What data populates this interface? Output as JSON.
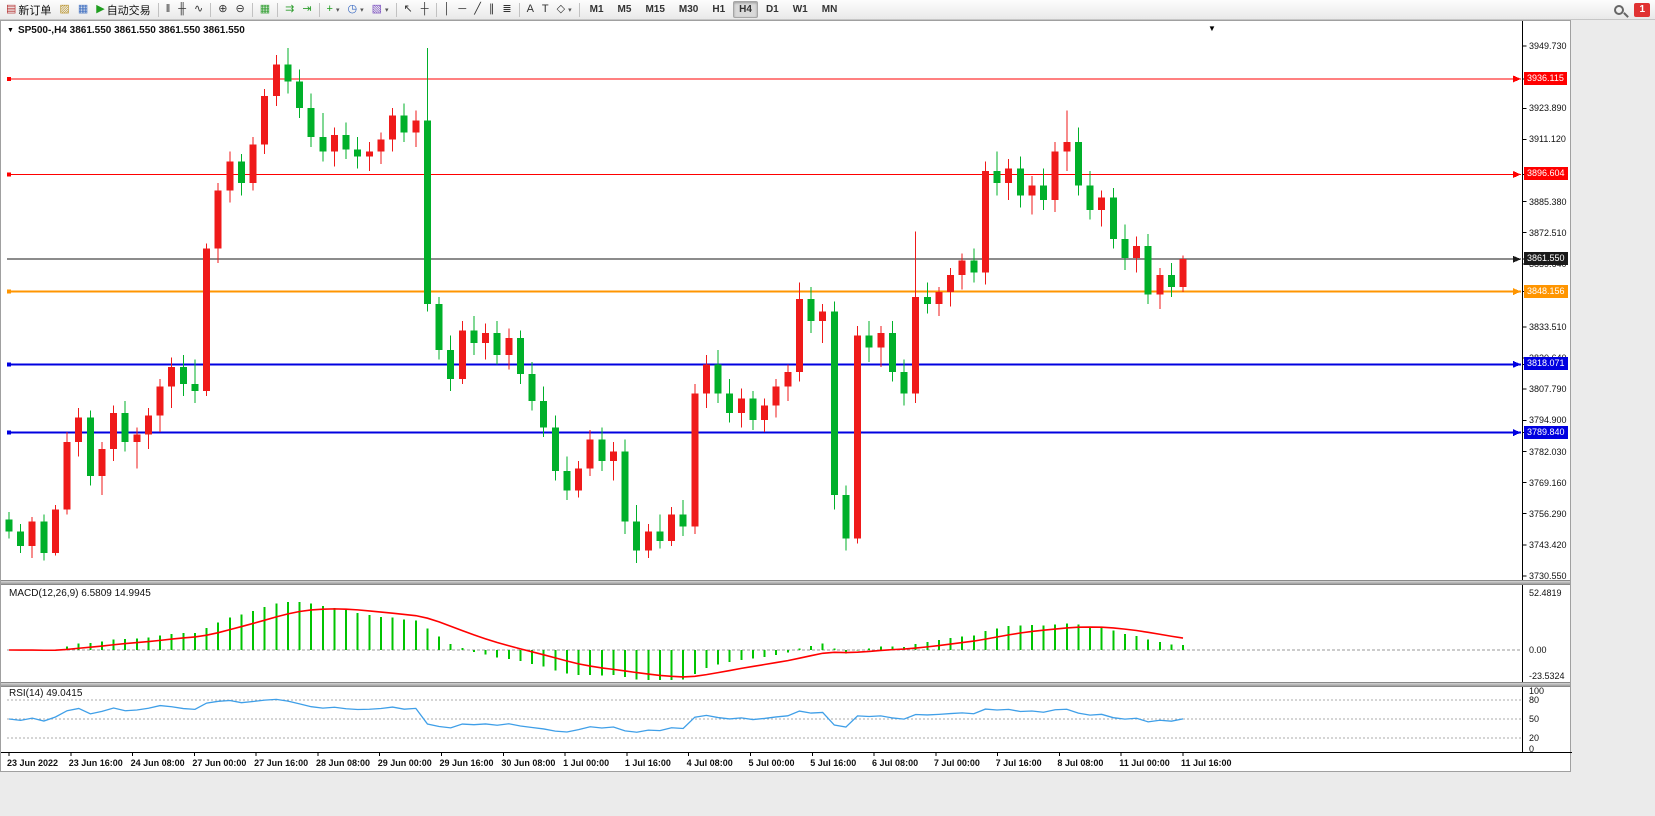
{
  "toolbar": {
    "caret_glyph": "▾",
    "notification_count": "1",
    "items": [
      {
        "name": "new-order-button",
        "glyph": "▤",
        "glyph_color": "#b43030",
        "label": "新订单"
      },
      {
        "name": "chart-profiles-icon-button",
        "glyph": "▨",
        "glyph_color": "#b8922a"
      },
      {
        "name": "market-watch-icon-button",
        "glyph": "▦",
        "glyph_color": "#3a6bbf"
      },
      {
        "name": "auto-trading-button",
        "glyph": "▶",
        "glyph_color": "#1f9e1f",
        "label": "自动交易"
      },
      {
        "sep": true
      },
      {
        "name": "bar-chart-button",
        "glyph": "‖",
        "glyph_color": "#333333"
      },
      {
        "name": "candlestick-chart-button",
        "glyph": "╫",
        "glyph_color": "#333333"
      },
      {
        "name": "line-chart-button",
        "glyph": "∿",
        "glyph_color": "#333333"
      },
      {
        "sep": true
      },
      {
        "name": "zoom-in-button",
        "glyph": "⊕",
        "glyph_color": "#333333"
      },
      {
        "name": "zoom-out-button",
        "glyph": "⊖",
        "glyph_color": "#333333"
      },
      {
        "sep": true
      },
      {
        "name": "tile-windows-button",
        "glyph": "▦",
        "glyph_color": "#2f9e2f"
      },
      {
        "sep": true
      },
      {
        "name": "auto-scroll-button",
        "glyph": "⇉",
        "glyph_color": "#2f9e2f"
      },
      {
        "name": "chart-shift-button",
        "glyph": "⇥",
        "glyph_color": "#2f9e2f"
      },
      {
        "sep": true
      },
      {
        "name": "indicators-button",
        "glyph": "+",
        "glyph_color": "#1f9e1f",
        "dropdown": true
      },
      {
        "name": "periods-button",
        "glyph": "◷",
        "glyph_color": "#2a5fbf",
        "dropdown": true
      },
      {
        "name": "templates-button",
        "glyph": "▧",
        "glyph_color": "#7a4fbf",
        "dropdown": true
      },
      {
        "sep": true
      },
      {
        "name": "cursor-button",
        "glyph": "↖",
        "glyph_color": "#333333"
      },
      {
        "name": "crosshair-button",
        "glyph": "┼",
        "glyph_color": "#333333"
      },
      {
        "sep": true
      },
      {
        "name": "vertical-line-button",
        "glyph": "│",
        "glyph_color": "#333333"
      },
      {
        "name": "horizontal-line-button",
        "glyph": "─",
        "glyph_color": "#333333"
      },
      {
        "name": "trendline-button",
        "glyph": "╱",
        "glyph_color": "#333333"
      },
      {
        "name": "equidistant-channel-button",
        "glyph": "∥",
        "glyph_color": "#333333"
      },
      {
        "name": "fibonacci-button",
        "glyph": "≣",
        "glyph_color": "#333333"
      },
      {
        "sep": true
      },
      {
        "name": "text-button",
        "glyph": "A",
        "glyph_color": "#333333"
      },
      {
        "name": "text-label-button",
        "glyph": "T",
        "glyph_color": "#333333"
      },
      {
        "name": "arrows-button",
        "glyph": "◇",
        "glyph_color": "#333333",
        "dropdown": true
      },
      {
        "sep": true
      }
    ],
    "timeframes": [
      "M1",
      "M5",
      "M15",
      "M30",
      "H1",
      "H4",
      "D1",
      "W1",
      "MN"
    ],
    "active_timeframe": "H4"
  },
  "chart": {
    "title": "SP500-,H4  3861.550 3861.550 3861.550 3861.550",
    "dropdown_glyph": "▼",
    "scroll_marker_glyph": "▼"
  },
  "chart_data": {
    "type": "candlestick",
    "symbol": "SP500-",
    "timeframe": "H4",
    "ohlc_display": [
      "3861.550",
      "3861.550",
      "3861.550",
      "3861.550"
    ],
    "colors": {
      "bull": "#ef1a1a",
      "bear": "#00b02a",
      "macd_histogram": "#00c400",
      "macd_signal": "#ff0000",
      "rsi_line": "#3f9fe8",
      "current_price_line": "#1a1a1a"
    },
    "y_range": [
      3729.3,
      3951.8
    ],
    "candles": [
      [
        3754,
        3757,
        3746,
        3749
      ],
      [
        3749,
        3752,
        3740,
        3743
      ],
      [
        3743,
        3755,
        3738,
        3753
      ],
      [
        3753,
        3756,
        3737,
        3740
      ],
      [
        3740,
        3760,
        3739,
        3758
      ],
      [
        3758,
        3790,
        3756,
        3786
      ],
      [
        3786,
        3800,
        3780,
        3796
      ],
      [
        3796,
        3799,
        3768,
        3772
      ],
      [
        3772,
        3786,
        3764,
        3783
      ],
      [
        3783,
        3801,
        3778,
        3798
      ],
      [
        3798,
        3803,
        3782,
        3786
      ],
      [
        3786,
        3792,
        3775,
        3789
      ],
      [
        3789,
        3800,
        3783,
        3797
      ],
      [
        3797,
        3812,
        3790,
        3809
      ],
      [
        3809,
        3821,
        3800,
        3817
      ],
      [
        3817,
        3822,
        3805,
        3810
      ],
      [
        3810,
        3820,
        3802,
        3807
      ],
      [
        3807,
        3868,
        3805,
        3866
      ],
      [
        3866,
        3893,
        3860,
        3890
      ],
      [
        3890,
        3906,
        3885,
        3902
      ],
      [
        3902,
        3905,
        3888,
        3893
      ],
      [
        3893,
        3912,
        3890,
        3909
      ],
      [
        3909,
        3932,
        3905,
        3929
      ],
      [
        3929,
        3946,
        3925,
        3942
      ],
      [
        3942,
        3949,
        3930,
        3935
      ],
      [
        3935,
        3940,
        3920,
        3924
      ],
      [
        3924,
        3930,
        3908,
        3912
      ],
      [
        3912,
        3922,
        3902,
        3906
      ],
      [
        3906,
        3916,
        3900,
        3913
      ],
      [
        3913,
        3918,
        3903,
        3907
      ],
      [
        3907,
        3912,
        3899,
        3904
      ],
      [
        3904,
        3910,
        3898,
        3906
      ],
      [
        3906,
        3914,
        3901,
        3911
      ],
      [
        3911,
        3924,
        3906,
        3921
      ],
      [
        3921,
        3926,
        3910,
        3914
      ],
      [
        3914,
        3923,
        3908,
        3919
      ],
      [
        3919,
        3949,
        3840,
        3843
      ],
      [
        3843,
        3846,
        3820,
        3824
      ],
      [
        3824,
        3830,
        3807,
        3812
      ],
      [
        3812,
        3836,
        3810,
        3832
      ],
      [
        3832,
        3838,
        3822,
        3827
      ],
      [
        3827,
        3835,
        3820,
        3831
      ],
      [
        3831,
        3836,
        3818,
        3822
      ],
      [
        3822,
        3833,
        3816,
        3829
      ],
      [
        3829,
        3832,
        3810,
        3814
      ],
      [
        3814,
        3819,
        3799,
        3803
      ],
      [
        3803,
        3809,
        3788,
        3792
      ],
      [
        3792,
        3797,
        3770,
        3774
      ],
      [
        3774,
        3780,
        3762,
        3766
      ],
      [
        3766,
        3778,
        3763,
        3775
      ],
      [
        3775,
        3791,
        3772,
        3787
      ],
      [
        3787,
        3792,
        3774,
        3778
      ],
      [
        3778,
        3786,
        3770,
        3782
      ],
      [
        3782,
        3787,
        3748,
        3753
      ],
      [
        3753,
        3760,
        3736,
        3741
      ],
      [
        3741,
        3752,
        3738,
        3749
      ],
      [
        3749,
        3756,
        3742,
        3745
      ],
      [
        3745,
        3759,
        3743,
        3756
      ],
      [
        3756,
        3762,
        3747,
        3751
      ],
      [
        3751,
        3810,
        3748,
        3806
      ],
      [
        3806,
        3822,
        3800,
        3818
      ],
      [
        3818,
        3824,
        3802,
        3806
      ],
      [
        3806,
        3812,
        3794,
        3798
      ],
      [
        3798,
        3808,
        3792,
        3804
      ],
      [
        3804,
        3807,
        3791,
        3795
      ],
      [
        3795,
        3804,
        3790,
        3801
      ],
      [
        3801,
        3812,
        3796,
        3809
      ],
      [
        3809,
        3818,
        3803,
        3815
      ],
      [
        3815,
        3852,
        3811,
        3845
      ],
      [
        3845,
        3850,
        3831,
        3836
      ],
      [
        3836,
        3843,
        3827,
        3840
      ],
      [
        3840,
        3844,
        3758,
        3764
      ],
      [
        3764,
        3768,
        3741,
        3746
      ],
      [
        3746,
        3834,
        3744,
        3830
      ],
      [
        3830,
        3836,
        3819,
        3825
      ],
      [
        3825,
        3834,
        3817,
        3831
      ],
      [
        3831,
        3836,
        3811,
        3815
      ],
      [
        3815,
        3820,
        3801,
        3806
      ],
      [
        3806,
        3873,
        3802,
        3846
      ],
      [
        3846,
        3852,
        3839,
        3843
      ],
      [
        3843,
        3850,
        3838,
        3848
      ],
      [
        3848,
        3858,
        3842,
        3855
      ],
      [
        3855,
        3864,
        3849,
        3861
      ],
      [
        3861,
        3866,
        3852,
        3856
      ],
      [
        3856,
        3902,
        3851,
        3898
      ],
      [
        3898,
        3906,
        3888,
        3893
      ],
      [
        3893,
        3903,
        3886,
        3899
      ],
      [
        3899,
        3904,
        3883,
        3888
      ],
      [
        3888,
        3896,
        3880,
        3892
      ],
      [
        3892,
        3899,
        3882,
        3886
      ],
      [
        3886,
        3910,
        3881,
        3906
      ],
      [
        3906,
        3923,
        3898,
        3910
      ],
      [
        3910,
        3916,
        3888,
        3892
      ],
      [
        3892,
        3898,
        3878,
        3882
      ],
      [
        3882,
        3890,
        3875,
        3887
      ],
      [
        3887,
        3891,
        3866,
        3870
      ],
      [
        3870,
        3876,
        3857,
        3862
      ],
      [
        3862,
        3871,
        3856,
        3867
      ],
      [
        3867,
        3872,
        3843,
        3847
      ],
      [
        3847,
        3858,
        3841,
        3855
      ],
      [
        3855,
        3860,
        3846,
        3850
      ],
      [
        3850,
        3863,
        3848,
        3861.55
      ]
    ],
    "levels": [
      {
        "price": 3936.115,
        "color": "#ff0000",
        "width": 1,
        "label": "3936.115"
      },
      {
        "price": 3896.604,
        "color": "#ff0000",
        "width": 1,
        "label": "3896.604"
      },
      {
        "price": 3848.156,
        "color": "#ff9500",
        "width": 2,
        "label": "3848.156"
      },
      {
        "price": 3818.071,
        "color": "#0000e0",
        "width": 2,
        "label": "3818.071"
      },
      {
        "price": 3789.84,
        "color": "#0000e0",
        "width": 2,
        "label": "3789.840"
      }
    ],
    "current_price": {
      "price": 3861.55,
      "color": "#1a1a1a",
      "label": "3861.550"
    },
    "y_axis_labels": [
      "3949.730",
      "3923.890",
      "3911.120",
      "3885.380",
      "3872.510",
      "3859.640",
      "3833.510",
      "3820.640",
      "3807.790",
      "3794.900",
      "3782.030",
      "3769.160",
      "3756.290",
      "3743.420",
      "3730.550"
    ],
    "x_axis_labels": [
      "23 Jun 2022",
      "23 Jun 16:00",
      "24 Jun 08:00",
      "27 Jun 00:00",
      "27 Jun 16:00",
      "28 Jun 08:00",
      "29 Jun 00:00",
      "29 Jun 16:00",
      "30 Jun 08:00",
      "1 Jul 00:00",
      "1 Jul 16:00",
      "4 Jul 08:00",
      "5 Jul 00:00",
      "5 Jul 16:00",
      "6 Jul 08:00",
      "7 Jul 00:00",
      "7 Jul 16:00",
      "8 Jul 08:00",
      "11 Jul 00:00",
      "11 Jul 16:00"
    ],
    "indicators": {
      "macd": {
        "label": "MACD(12,26,9) 6.5809 14.9945",
        "params": [
          12,
          26,
          9
        ],
        "values_display": [
          "6.5809",
          "14.9945"
        ],
        "scale_labels": [
          "52.4819",
          "0.00",
          "-23.5324"
        ]
      },
      "rsi": {
        "label": "RSI(14) 49.0415",
        "period": 14,
        "value_display": "49.0415",
        "scale_labels": [
          "100",
          "80",
          "50",
          "20",
          "0"
        ],
        "levels": [
          80,
          50,
          20
        ]
      }
    }
  }
}
